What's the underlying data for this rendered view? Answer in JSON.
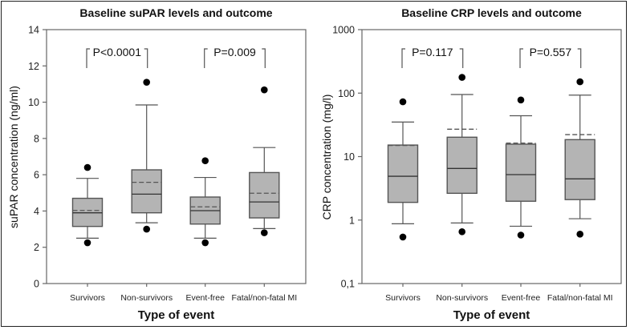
{
  "chart_data": [
    {
      "type": "box",
      "title": "Baseline suPAR levels and outcome",
      "xlabel": "Type of event",
      "ylabel": "suPAR concentration (ng/ml)",
      "yscale": "linear",
      "ylim": [
        0,
        14
      ],
      "yticks": [
        0,
        2,
        4,
        6,
        8,
        10,
        12,
        14
      ],
      "ytick_labels": [
        "0",
        "2",
        "4",
        "6",
        "8",
        "10",
        "12",
        "14"
      ],
      "categories": [
        "Survivors",
        "Non-survivors",
        "Event-free",
        "Fatal/non-fatal MI"
      ],
      "boxes": [
        {
          "q1": 3.15,
          "median": 3.9,
          "q3": 4.7,
          "mean": 4.03,
          "whisker_low": 2.5,
          "whisker_high": 5.8,
          "outlier_low": 2.25,
          "outlier_high": 6.4
        },
        {
          "q1": 3.9,
          "median": 4.93,
          "q3": 6.27,
          "mean": 5.58,
          "whisker_low": 3.35,
          "whisker_high": 9.85,
          "outlier_low": 3.0,
          "outlier_high": 11.1
        },
        {
          "q1": 3.28,
          "median": 4.02,
          "q3": 4.77,
          "mean": 4.23,
          "whisker_low": 2.5,
          "whisker_high": 5.85,
          "outlier_low": 2.25,
          "outlier_high": 6.77
        },
        {
          "q1": 3.62,
          "median": 4.5,
          "q3": 6.12,
          "mean": 4.98,
          "whisker_low": 3.03,
          "whisker_high": 7.5,
          "outlier_low": 2.8,
          "outlier_high": 10.68
        }
      ],
      "comparisons": [
        {
          "from": 0,
          "to": 1,
          "label": "P<0.0001"
        },
        {
          "from": 2,
          "to": 3,
          "label": "P=0.009"
        }
      ],
      "grid": false,
      "legend": "none"
    },
    {
      "type": "box",
      "title": "Baseline CRP levels and outcome",
      "xlabel": "Type of event",
      "ylabel": "CRP concentration (mg/l)",
      "yscale": "log",
      "ylim": [
        0.1,
        1000
      ],
      "yticks": [
        0.1,
        1,
        10,
        100,
        1000
      ],
      "ytick_labels": [
        "0,1",
        "1",
        "10",
        "100",
        "1000"
      ],
      "categories": [
        "Survivors",
        "Non-survivors",
        "Event-free",
        "Fatal/non-fatal MI"
      ],
      "boxes": [
        {
          "q1": 1.9,
          "median": 4.9,
          "q3": 15.2,
          "mean": 15.0,
          "whisker_low": 0.875,
          "whisker_high": 35,
          "outlier_low": 0.54,
          "outlier_high": 73
        },
        {
          "q1": 2.64,
          "median": 6.5,
          "q3": 20.2,
          "mean": 27,
          "whisker_low": 0.9,
          "whisker_high": 95,
          "outlier_low": 0.655,
          "outlier_high": 177
        },
        {
          "q1": 1.98,
          "median": 5.2,
          "q3": 15.7,
          "mean": 16.3,
          "whisker_low": 0.8,
          "whisker_high": 44,
          "outlier_low": 0.58,
          "outlier_high": 78
        },
        {
          "q1": 2.1,
          "median": 4.46,
          "q3": 18.5,
          "mean": 22.2,
          "whisker_low": 1.05,
          "whisker_high": 93,
          "outlier_low": 0.6,
          "outlier_high": 151
        }
      ],
      "comparisons": [
        {
          "from": 0,
          "to": 1,
          "label": "P=0.117"
        },
        {
          "from": 2,
          "to": 3,
          "label": "P=0.557"
        }
      ],
      "grid": false,
      "legend": "none"
    }
  ]
}
